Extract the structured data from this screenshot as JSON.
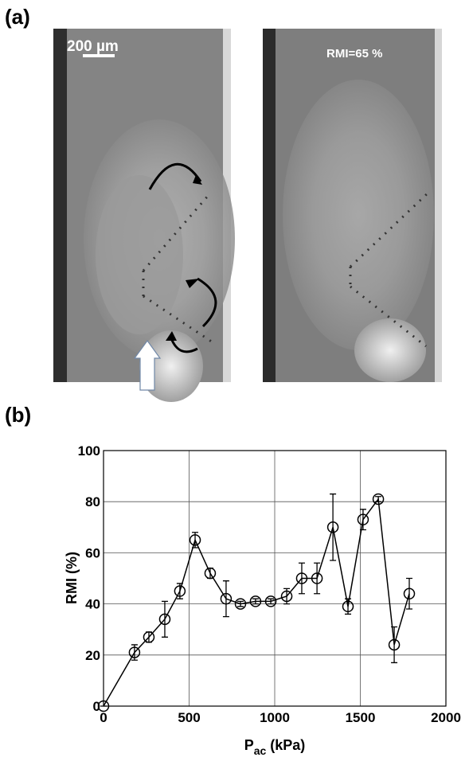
{
  "panel_a": {
    "label": "(a)",
    "scale_bar": "200 µm",
    "rmi_label": "RMI=65 %"
  },
  "panel_b": {
    "label": "(b)"
  },
  "chart_data": {
    "type": "line",
    "ylabel": "RMI (%)",
    "xlabel": {
      "main": "P",
      "sub": "ac",
      "rest": " (kPa)"
    },
    "x": [
      0,
      181,
      265,
      358,
      446,
      535,
      623,
      716,
      800,
      888,
      977,
      1070,
      1158,
      1247,
      1340,
      1428,
      1516,
      1605,
      1698,
      1786
    ],
    "series": [
      {
        "color": "#000000",
        "values": [
          0,
          21,
          27,
          34,
          45,
          65,
          52,
          42,
          40,
          41,
          41,
          43,
          50,
          50,
          70,
          39,
          73,
          81,
          24,
          44
        ],
        "errors": [
          0,
          3,
          2,
          7,
          3,
          3,
          2,
          7,
          1,
          1,
          1,
          3,
          6,
          6,
          13,
          3,
          4,
          1,
          7,
          6
        ]
      }
    ],
    "xlim": [
      0,
      2000
    ],
    "xticks": [
      0,
      500,
      1000,
      1500,
      2000
    ],
    "ylim": [
      0,
      100
    ],
    "yticks": [
      0,
      20,
      40,
      60,
      80,
      100
    ],
    "grid": true
  }
}
